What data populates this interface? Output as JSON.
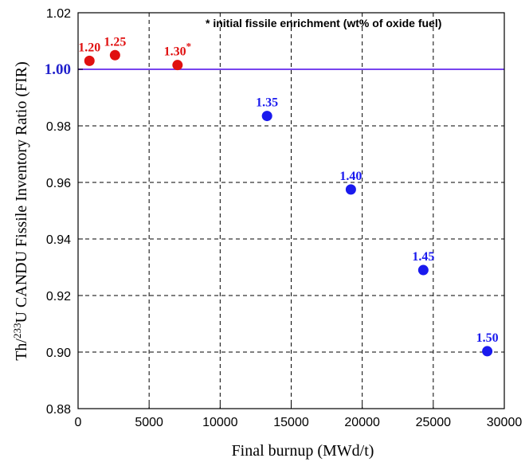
{
  "chart_data": {
    "type": "scatter",
    "xlabel": "Final burnup (MWd/t)",
    "ylabel_parts": [
      "Th/",
      "233",
      "U CANDU Fissile Inventory Ratio (FIR)"
    ],
    "annotation": "* initial fissile enrichment (wt% of oxide fuel)",
    "xlim": [
      0,
      30000
    ],
    "ylim": [
      0.88,
      1.02
    ],
    "x_ticks": [
      "0",
      "5000",
      "10000",
      "15000",
      "20000",
      "25000",
      "30000"
    ],
    "y_ticks": [
      "0.88",
      "0.90",
      "0.92",
      "0.94",
      "0.96",
      "0.98",
      "1.00",
      "1.02"
    ],
    "reference_line": {
      "y": 1.0,
      "color": "#7744ee"
    },
    "grid": "dashed",
    "series": [
      {
        "color": "#e01010",
        "points": [
          {
            "x": 800,
            "y": 1.003,
            "label": "1.20"
          },
          {
            "x": 2600,
            "y": 1.005,
            "label": "1.25"
          },
          {
            "x": 7000,
            "y": 1.0015,
            "label": "1.30*"
          }
        ]
      },
      {
        "color": "#1a1aee",
        "points": [
          {
            "x": 13300,
            "y": 0.9835,
            "label": "1.35"
          },
          {
            "x": 19200,
            "y": 0.9575,
            "label": "1.40"
          },
          {
            "x": 24300,
            "y": 0.929,
            "label": "1.45"
          },
          {
            "x": 28800,
            "y": 0.9003,
            "label": "1.50"
          }
        ]
      }
    ]
  }
}
